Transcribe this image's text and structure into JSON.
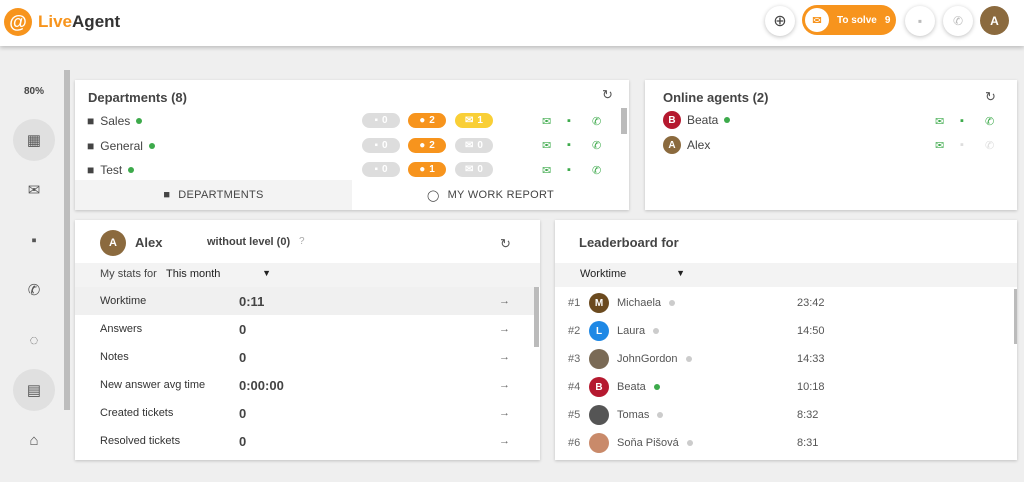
{
  "header": {
    "brand": "LiveAgent",
    "brand_accent": "Live",
    "brand_rest": "Agent",
    "to_solve_label": "To solve",
    "to_solve_count": "9",
    "user_initial": "A",
    "accent": "#f7941d"
  },
  "sidebar": {
    "zoom": "80%",
    "items": [
      {
        "icon": "dashboard-icon"
      },
      {
        "icon": "mail-icon"
      },
      {
        "icon": "chat-icon"
      },
      {
        "icon": "phone-icon"
      },
      {
        "icon": "reports-icon"
      },
      {
        "icon": "contacts-icon"
      },
      {
        "icon": "bank-icon"
      }
    ]
  },
  "departments": {
    "title": "Departments (8)",
    "rows": [
      {
        "name": "Sales",
        "chats": "0",
        "calls": "2",
        "tickets": "1",
        "status": "online"
      },
      {
        "name": "General",
        "chats": "0",
        "calls": "2",
        "tickets": "0",
        "status": "online"
      },
      {
        "name": "Test",
        "chats": "0",
        "calls": "1",
        "tickets": "0",
        "status": "online"
      }
    ],
    "tabs": [
      {
        "label": "DEPARTMENTS"
      },
      {
        "label": "MY WORK REPORT"
      }
    ]
  },
  "online_agents": {
    "title": "Online agents (2)",
    "agents": [
      {
        "name": "Beata",
        "initial": "B",
        "color": "#b5192f"
      },
      {
        "name": "Alex",
        "initial": "A",
        "color": "#8b6a3e"
      }
    ]
  },
  "my_stats": {
    "name": "Alex",
    "initial": "A",
    "level": "without level (0)",
    "help": "?",
    "stats_for_label": "My stats for",
    "period": "This month",
    "rows": [
      {
        "label": "Worktime",
        "value": "0:11"
      },
      {
        "label": "Answers",
        "value": "0"
      },
      {
        "label": "Notes",
        "value": "0"
      },
      {
        "label": "New answer avg time",
        "value": "0:00:00"
      },
      {
        "label": "Created tickets",
        "value": "0"
      },
      {
        "label": "Resolved tickets",
        "value": "0"
      }
    ]
  },
  "leaderboard": {
    "title": "Leaderboard for",
    "metric": "Worktime",
    "rows": [
      {
        "rank": "#1",
        "name": "Michaela",
        "initial": "M",
        "color": "#6b4a1f",
        "time": "23:42",
        "online": false
      },
      {
        "rank": "#2",
        "name": "Laura",
        "initial": "L",
        "color": "#1e88e5",
        "time": "14:50",
        "online": false
      },
      {
        "rank": "#3",
        "name": "JohnGordon",
        "initial": "",
        "color": "#7a6a55",
        "time": "14:33",
        "online": false
      },
      {
        "rank": "#4",
        "name": "Beata",
        "initial": "B",
        "color": "#b5192f",
        "time": "10:18",
        "online": true
      },
      {
        "rank": "#5",
        "name": "Tomas",
        "initial": "",
        "color": "#555",
        "time": "8:32",
        "online": false
      },
      {
        "rank": "#6",
        "name": "Soňa Pišová",
        "initial": "",
        "color": "#c98a6a",
        "time": "8:31",
        "online": false
      }
    ]
  }
}
